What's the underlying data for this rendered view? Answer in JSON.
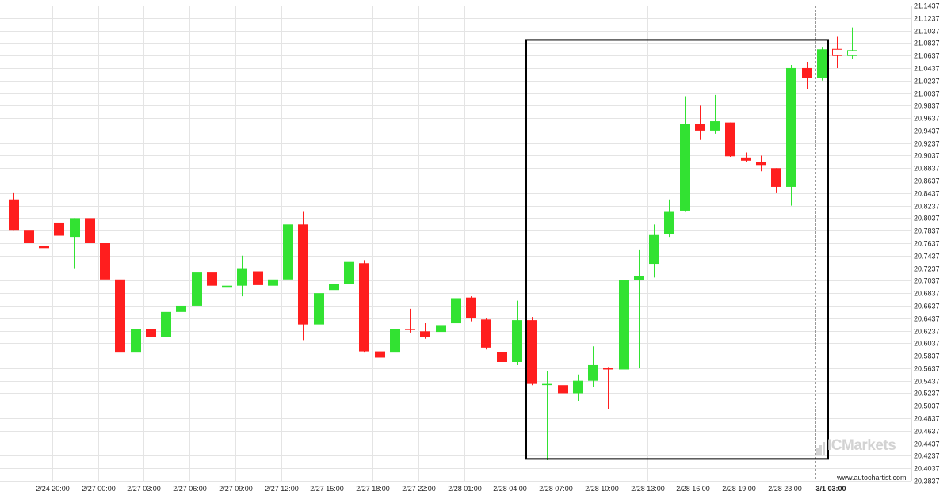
{
  "chart_data": {
    "type": "candlestick",
    "y_axis": {
      "position": "right",
      "ylim": [
        20.3837,
        21.1437
      ],
      "tick_labels": [
        "21.1437",
        "21.1237",
        "21.1037",
        "21.0837",
        "21.0637",
        "21.0437",
        "21.0237",
        "21.0037",
        "20.9837",
        "20.9637",
        "20.9437",
        "20.9237",
        "20.9037",
        "20.8837",
        "20.8637",
        "20.8437",
        "20.8237",
        "20.8037",
        "20.7837",
        "20.7637",
        "20.7437",
        "20.7237",
        "20.7037",
        "20.6837",
        "20.6637",
        "20.6437",
        "20.6237",
        "20.6037",
        "20.5837",
        "20.5637",
        "20.5437",
        "20.5237",
        "20.5037",
        "20.4837",
        "20.4637",
        "20.4437",
        "20.4237",
        "20.4037",
        "20.3837"
      ]
    },
    "x_axis": {
      "tick_labels": [
        "2/24 20:00",
        "2/27 00:00",
        "2/27 03:00",
        "2/27 06:00",
        "2/27 09:00",
        "2/27 12:00",
        "2/27 15:00",
        "2/27 18:00",
        "2/27 22:00",
        "2/28 01:00",
        "2/28 04:00",
        "2/28 07:00",
        "2/28 10:00",
        "2/28 13:00",
        "2/28 16:00",
        "2/28 19:00",
        "2/28 23:00",
        "3/1 03:00"
      ],
      "tick_candle_index": [
        1,
        4,
        7,
        10,
        13,
        16,
        19,
        22,
        25,
        28,
        31,
        34,
        37,
        40,
        43,
        46,
        49,
        52
      ],
      "bold_label": "3/1 03:00"
    },
    "candles": [
      {
        "o": 20.8337,
        "h": 20.8437,
        "l": 20.7837,
        "c": 20.7837
      },
      {
        "o": 20.7837,
        "h": 20.8437,
        "l": 20.7337,
        "c": 20.7637
      },
      {
        "o": 20.7587,
        "h": 20.7787,
        "l": 20.7537,
        "c": 20.7557
      },
      {
        "o": 20.7967,
        "h": 20.8477,
        "l": 20.7587,
        "c": 20.7757
      },
      {
        "o": 20.7737,
        "h": 20.8037,
        "l": 20.7237,
        "c": 20.8037
      },
      {
        "o": 20.8037,
        "h": 20.8337,
        "l": 20.7587,
        "c": 20.7637
      },
      {
        "o": 20.7637,
        "h": 20.7787,
        "l": 20.6957,
        "c": 20.7057
      },
      {
        "o": 20.7057,
        "h": 20.7137,
        "l": 20.5687,
        "c": 20.5887
      },
      {
        "o": 20.5887,
        "h": 20.6287,
        "l": 20.5737,
        "c": 20.6257
      },
      {
        "o": 20.6257,
        "h": 20.6387,
        "l": 20.5887,
        "c": 20.6137
      },
      {
        "o": 20.6137,
        "h": 20.6787,
        "l": 20.6037,
        "c": 20.6537
      },
      {
        "o": 20.6537,
        "h": 20.6857,
        "l": 20.6087,
        "c": 20.6637
      },
      {
        "o": 20.6637,
        "h": 20.7937,
        "l": 20.6637,
        "c": 20.7167
      },
      {
        "o": 20.7167,
        "h": 20.7577,
        "l": 20.6957,
        "c": 20.6957
      },
      {
        "o": 20.6937,
        "h": 20.7417,
        "l": 20.6787,
        "c": 20.6957
      },
      {
        "o": 20.6957,
        "h": 20.7437,
        "l": 20.6787,
        "c": 20.7237
      },
      {
        "o": 20.7187,
        "h": 20.7737,
        "l": 20.6837,
        "c": 20.6967
      },
      {
        "o": 20.6957,
        "h": 20.7387,
        "l": 20.6137,
        "c": 20.7057
      },
      {
        "o": 20.7057,
        "h": 20.8087,
        "l": 20.6957,
        "c": 20.7937
      },
      {
        "o": 20.7937,
        "h": 20.8137,
        "l": 20.6087,
        "c": 20.6337
      },
      {
        "o": 20.6337,
        "h": 20.6937,
        "l": 20.5787,
        "c": 20.6837
      },
      {
        "o": 20.6887,
        "h": 20.7117,
        "l": 20.6687,
        "c": 20.6987
      },
      {
        "o": 20.6987,
        "h": 20.7487,
        "l": 20.6837,
        "c": 20.7337
      },
      {
        "o": 20.7317,
        "h": 20.7367,
        "l": 20.5887,
        "c": 20.5907
      },
      {
        "o": 20.5907,
        "h": 20.5957,
        "l": 20.5537,
        "c": 20.5807
      },
      {
        "o": 20.5887,
        "h": 20.6287,
        "l": 20.5787,
        "c": 20.6257
      },
      {
        "o": 20.6267,
        "h": 20.6587,
        "l": 20.6207,
        "c": 20.6257
      },
      {
        "o": 20.6227,
        "h": 20.6357,
        "l": 20.6107,
        "c": 20.6137
      },
      {
        "o": 20.6217,
        "h": 20.6687,
        "l": 20.6037,
        "c": 20.6327
      },
      {
        "o": 20.6357,
        "h": 20.7057,
        "l": 20.6087,
        "c": 20.6757
      },
      {
        "o": 20.6767,
        "h": 20.6787,
        "l": 20.6387,
        "c": 20.6437
      },
      {
        "o": 20.6417,
        "h": 20.6437,
        "l": 20.5937,
        "c": 20.5967
      },
      {
        "o": 20.5897,
        "h": 20.5937,
        "l": 20.5637,
        "c": 20.5737
      },
      {
        "o": 20.5737,
        "h": 20.6717,
        "l": 20.5687,
        "c": 20.6407
      },
      {
        "o": 20.6407,
        "h": 20.6457,
        "l": 20.5367,
        "c": 20.5387
      },
      {
        "o": 20.5387,
        "h": 20.5587,
        "l": 20.4167,
        "c": 20.5387
      },
      {
        "o": 20.5367,
        "h": 20.5837,
        "l": 20.4927,
        "c": 20.5237
      },
      {
        "o": 20.5237,
        "h": 20.5537,
        "l": 20.5117,
        "c": 20.5437
      },
      {
        "o": 20.5437,
        "h": 20.5987,
        "l": 20.5337,
        "c": 20.5687
      },
      {
        "o": 20.5637,
        "h": 20.5657,
        "l": 20.4987,
        "c": 20.5617
      },
      {
        "o": 20.5617,
        "h": 20.7137,
        "l": 20.5167,
        "c": 20.7047
      },
      {
        "o": 20.7047,
        "h": 20.7537,
        "l": 20.5637,
        "c": 20.7107
      },
      {
        "o": 20.7307,
        "h": 20.7937,
        "l": 20.7087,
        "c": 20.7767
      },
      {
        "o": 20.7787,
        "h": 20.8337,
        "l": 20.7737,
        "c": 20.8137
      },
      {
        "o": 20.8157,
        "h": 20.9987,
        "l": 20.8137,
        "c": 20.9537
      },
      {
        "o": 20.9537,
        "h": 20.9837,
        "l": 20.9287,
        "c": 20.9437
      },
      {
        "o": 20.9437,
        "h": 21.0007,
        "l": 20.9387,
        "c": 20.9587
      },
      {
        "o": 20.9567,
        "h": 20.9567,
        "l": 20.9017,
        "c": 20.9027
      },
      {
        "o": 20.9007,
        "h": 20.9087,
        "l": 20.8937,
        "c": 20.8957
      },
      {
        "o": 20.8937,
        "h": 20.9037,
        "l": 20.8787,
        "c": 20.8887
      },
      {
        "o": 20.8837,
        "h": 20.8837,
        "l": 20.8437,
        "c": 20.8537
      },
      {
        "o": 20.8537,
        "h": 21.0487,
        "l": 20.8237,
        "c": 21.0437
      },
      {
        "o": 21.0437,
        "h": 21.0537,
        "l": 21.0107,
        "c": 21.0277
      },
      {
        "o": 21.0277,
        "h": 21.0777,
        "l": 21.0237,
        "c": 21.0737
      },
      {
        "o": 21.0737,
        "h": 21.0937,
        "l": 21.0437,
        "c": 21.0637
      },
      {
        "o": 21.0637,
        "h": 21.1087,
        "l": 21.0587,
        "c": 21.0717
      }
    ],
    "hollow_candle_index": [
      54,
      55
    ],
    "pattern_box": {
      "start_candle_index": 34,
      "end_candle_index": 53,
      "top": 21.0887,
      "bottom": 20.4187
    },
    "marker_candle_index": 53,
    "colors": {
      "up": "#32e232",
      "down": "#ff1e1e",
      "box": "#000000",
      "grid": "#e4e4e4"
    }
  },
  "watermark": "ICMarkets",
  "source": "www.autochartist.com"
}
